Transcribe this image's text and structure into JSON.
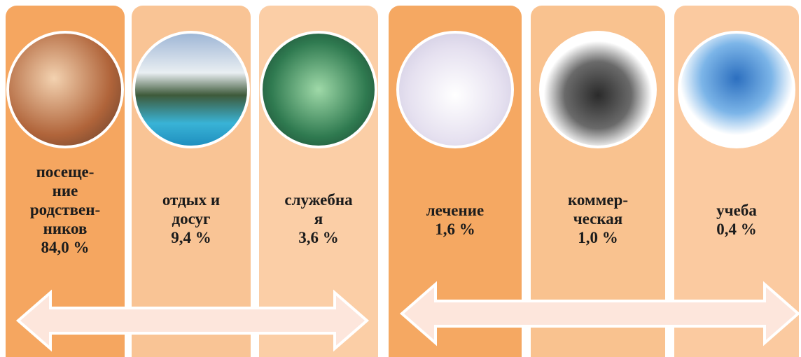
{
  "cards": [
    {
      "lines": [
        "посеще-",
        "ние",
        "родствен-",
        "ников"
      ],
      "value": "84,0 %"
    },
    {
      "lines": [
        "отдых и",
        "досуг"
      ],
      "value": "9,4 %"
    },
    {
      "lines": [
        "служебна",
        "я"
      ],
      "value": "3,6 %"
    },
    {
      "lines": [
        "лечение"
      ],
      "value": "1,6 %"
    },
    {
      "lines": [
        "коммер-",
        "ческая"
      ],
      "value": "1,0 %"
    },
    {
      "lines": [
        "учеба"
      ],
      "value": "0,4 %"
    }
  ]
}
